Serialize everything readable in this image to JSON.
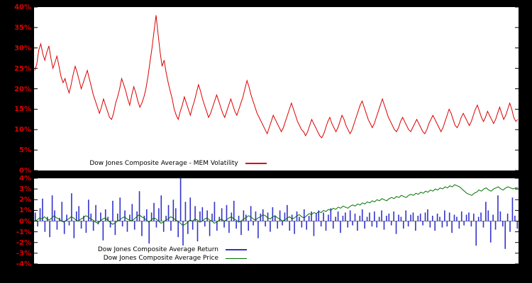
{
  "accent_colors": {
    "axis_label": "#dd0000",
    "volatility_line": "#dd0000",
    "return_bars": "#3232cd",
    "price_line": "#007000",
    "background": "#000000",
    "plot_background": "#ffffff"
  },
  "chart_data": [
    {
      "type": "line",
      "title": "",
      "ylabel": "",
      "xlabel": "",
      "ylim": [
        0,
        40
      ],
      "yticks": [
        "40%",
        "35%",
        "30%",
        "25%",
        "20%",
        "15%",
        "10%",
        "5%",
        "0%"
      ],
      "grid": false,
      "legend_position": "bottom-left",
      "zero_axis": false,
      "series": [
        {
          "name": "Dow Jones Composite Average - MEM Volatility",
          "type": "line",
          "color": "#dd0000",
          "unit": "%",
          "values": [
            24.5,
            26,
            29.5,
            31,
            28.5,
            27,
            29,
            30.5,
            27.5,
            25,
            26.5,
            28,
            25.5,
            23,
            21.5,
            22.5,
            20.5,
            19,
            21,
            23.5,
            25.5,
            24,
            22,
            20,
            21.5,
            23,
            24.5,
            22.5,
            20.5,
            18.5,
            17,
            15.5,
            14,
            15.5,
            17.5,
            16,
            14.5,
            13,
            12.5,
            14,
            16.5,
            18,
            20,
            22.5,
            21,
            19.5,
            17.5,
            16,
            18.5,
            20.5,
            19,
            17,
            15.5,
            16.5,
            18,
            20,
            23,
            26.5,
            30,
            34,
            38,
            33.5,
            29,
            25.5,
            27,
            24,
            21.5,
            19.5,
            17.5,
            15,
            13.5,
            12.5,
            14.5,
            16,
            18,
            16.5,
            15,
            13.5,
            15.5,
            17,
            19,
            21,
            19.5,
            17.5,
            16,
            14.5,
            13,
            14,
            15.5,
            17,
            18.5,
            17,
            15.5,
            14,
            13,
            14.5,
            16,
            17.5,
            16,
            14.5,
            13.5,
            15,
            16.5,
            18,
            20,
            22,
            20.5,
            18.5,
            17,
            15.5,
            14,
            13,
            12,
            11,
            10,
            9,
            10.5,
            12,
            13.5,
            12.5,
            11.5,
            10.5,
            9.5,
            10.5,
            12,
            13.5,
            15,
            16.5,
            15,
            13.5,
            12,
            11,
            10,
            9.5,
            8.5,
            9.5,
            11,
            12.5,
            11.5,
            10.5,
            9.5,
            8.5,
            8,
            9,
            10.5,
            12,
            13,
            11.5,
            10.5,
            9.5,
            10.5,
            12,
            13.5,
            12.5,
            11,
            10,
            9,
            10,
            11.5,
            13,
            14.5,
            16,
            17,
            15.5,
            14,
            12.5,
            11.5,
            10.5,
            11.5,
            13,
            14.5,
            16,
            17.5,
            16,
            14.5,
            13,
            12,
            11,
            10,
            9.5,
            10.5,
            12,
            13,
            12,
            11,
            10,
            9.5,
            10.5,
            11.5,
            12.5,
            11.5,
            10.5,
            9.5,
            9,
            10,
            11.5,
            12.5,
            13.5,
            12.5,
            11.5,
            10.5,
            9.5,
            10.5,
            12,
            13.5,
            15,
            14,
            12.5,
            11,
            10.5,
            11.5,
            13,
            14,
            13,
            12,
            11,
            12,
            13.5,
            15,
            16,
            14.5,
            13,
            12,
            13,
            14.5,
            13.5,
            12.5,
            11.5,
            12.5,
            14,
            15.5,
            14,
            12.5,
            13.5,
            15,
            16.5,
            15,
            13,
            12,
            12.5
          ]
        }
      ]
    },
    {
      "type": "bar",
      "title": "",
      "ylabel": "",
      "xlabel": "",
      "ylim": [
        -4,
        4
      ],
      "yticks": [
        "4%",
        "3%",
        "2%",
        "1%",
        "0%",
        "-1%",
        "-2%",
        "-3%",
        "-4%"
      ],
      "grid": false,
      "legend_position": "bottom-left",
      "zero_axis": true,
      "series": [
        {
          "name": "Dow Jones Composite Average Return",
          "type": "bar",
          "color": "#3232cd",
          "unit": "%",
          "values": [
            0.8,
            -0.5,
            1.2,
            2.1,
            -1,
            0.4,
            -1.5,
            2.4,
            1,
            -0.8,
            0.3,
            1.8,
            -1.2,
            0.6,
            -0.4,
            2.6,
            -1.6,
            0.9,
            1.4,
            -0.7,
            0.5,
            -1.1,
            2,
            0.7,
            -0.9,
            1.5,
            -0.3,
            0.8,
            -1.8,
            1.1,
            0.4,
            -0.6,
            1.9,
            -1.3,
            0.7,
            2.2,
            -0.5,
            1,
            -1,
            0.6,
            1.6,
            -0.8,
            0.9,
            2.8,
            -1.4,
            0.5,
            1.1,
            -2.1,
            0.8,
            1.7,
            -0.6,
            1.2,
            2.4,
            -1,
            0.5,
            1.5,
            -0.9,
            2,
            1.2,
            -1.5,
            4.7,
            -2.6,
            1.8,
            -1.2,
            2.2,
            -0.8,
            1.4,
            -1.9,
            0.9,
            1.3,
            -0.5,
            1,
            -1.4,
            0.7,
            1.8,
            -0.9,
            0.4,
            1.2,
            -0.6,
            1.5,
            -1.1,
            0.8,
            1.9,
            -0.7,
            0.5,
            -1.3,
            1,
            0.6,
            -0.9,
            1.4,
            -0.4,
            0.9,
            -1.6,
            0.7,
            1.1,
            -0.5,
            0.8,
            -1,
            1.3,
            0.5,
            -0.7,
            1,
            -0.4,
            0.8,
            1.5,
            -0.9,
            0.6,
            -1.2,
            0.9,
            0.4,
            -0.6,
            1.1,
            -0.8,
            0.5,
            0.9,
            -1.4,
            0.7,
            1,
            -0.5,
            0.8,
            -0.9,
            0.6,
            1.2,
            -0.7,
            0.4,
            0.9,
            -1.1,
            0.5,
            0.8,
            -0.6,
            1,
            -0.4,
            0.7,
            -0.9,
            0.5,
            1.1,
            -0.7,
            0.4,
            0.8,
            -0.5,
            0.9,
            -0.6,
            0.4,
            1,
            -0.8,
            0.5,
            0.7,
            -0.4,
            0.9,
            -1.2,
            0.6,
            0.4,
            -0.7,
            1,
            -0.5,
            0.6,
            0.8,
            -0.9,
            0.5,
            0.7,
            -0.4,
            0.8,
            1.1,
            -0.6,
            0.5,
            -0.9,
            0.7,
            0.4,
            -0.6,
            1,
            -0.5,
            0.8,
            -1.1,
            0.6,
            0.4,
            -0.7,
            0.9,
            -0.4,
            0.6,
            0.8,
            -0.5,
            0.7,
            -2.3,
            0.4,
            0.8,
            -0.6,
            1.8,
            1,
            -2,
            0.6,
            -0.8,
            2.4,
            0.9,
            -0.5,
            -2.6,
            0.7,
            -1,
            2.2,
            0.5,
            -0.7
          ]
        },
        {
          "name": "Dow Jones Composite Average Price",
          "type": "line",
          "color": "#007000",
          "unit": "%",
          "values": [
            0,
            0.1,
            0.3,
            0.2,
            0.4,
            0.2,
            0.1,
            0.3,
            0.5,
            0.3,
            0.2,
            0,
            -0.1,
            0.1,
            0.2,
            0.4,
            0.3,
            0.1,
            0,
            0.2,
            0.3,
            0.5,
            0.4,
            0.2,
            0.1,
            -0.1,
            -0.2,
            0,
            0.2,
            0.3,
            0.1,
            -0.1,
            -0.3,
            -0.2,
            0,
            0.1,
            0.3,
            0.4,
            0.2,
            0.1,
            0,
            0.2,
            0.4,
            0.6,
            0.4,
            0.3,
            0.1,
            -0.1,
            0.1,
            0.3,
            0.2,
            0,
            -0.2,
            -0.1,
            0.1,
            0.2,
            0.4,
            0.3,
            0.1,
            0,
            -0.2,
            -0.4,
            -0.3,
            -0.1,
            0.1,
            0,
            0.2,
            0.1,
            -0.1,
            0,
            0.2,
            0.3,
            0.1,
            0,
            -0.2,
            -0.1,
            0.1,
            0.2,
            0,
            0.1,
            0.3,
            0.4,
            0.2,
            0.1,
            -0.1,
            0,
            0.2,
            0.3,
            0.5,
            0.4,
            0.2,
            0.1,
            0.3,
            0.4,
            0.6,
            0.5,
            0.3,
            0.2,
            0.4,
            0.5,
            0.3,
            0.2,
            0,
            0.1,
            0.3,
            0.4,
            0.2,
            0.3,
            0.5,
            0.6,
            0.4,
            0.3,
            0.5,
            0.7,
            0.6,
            0.8,
            0.7,
            0.9,
            0.8,
            1,
            0.9,
            1.1,
            1,
            1.2,
            1.1,
            1.3,
            1.2,
            1.4,
            1.3,
            1.2,
            1.4,
            1.5,
            1.4,
            1.6,
            1.5,
            1.7,
            1.6,
            1.8,
            1.7,
            1.9,
            1.8,
            2,
            1.9,
            2.1,
            2,
            1.9,
            2.1,
            2.2,
            2.1,
            2.3,
            2.2,
            2.4,
            2.3,
            2.2,
            2.4,
            2.5,
            2.4,
            2.6,
            2.5,
            2.7,
            2.6,
            2.8,
            2.7,
            2.9,
            2.8,
            3,
            2.9,
            3.1,
            3,
            3.2,
            3.1,
            3.3,
            3.2,
            3.4,
            3.3,
            3.2,
            3,
            2.8,
            2.6,
            2.5,
            2.4,
            2.6,
            2.7,
            2.9,
            2.8,
            3,
            3.1,
            2.9,
            2.8,
            3,
            3.1,
            3.2,
            3,
            2.9,
            3.1,
            3.2,
            3.1,
            3,
            3.1,
            3.1
          ]
        }
      ]
    }
  ]
}
